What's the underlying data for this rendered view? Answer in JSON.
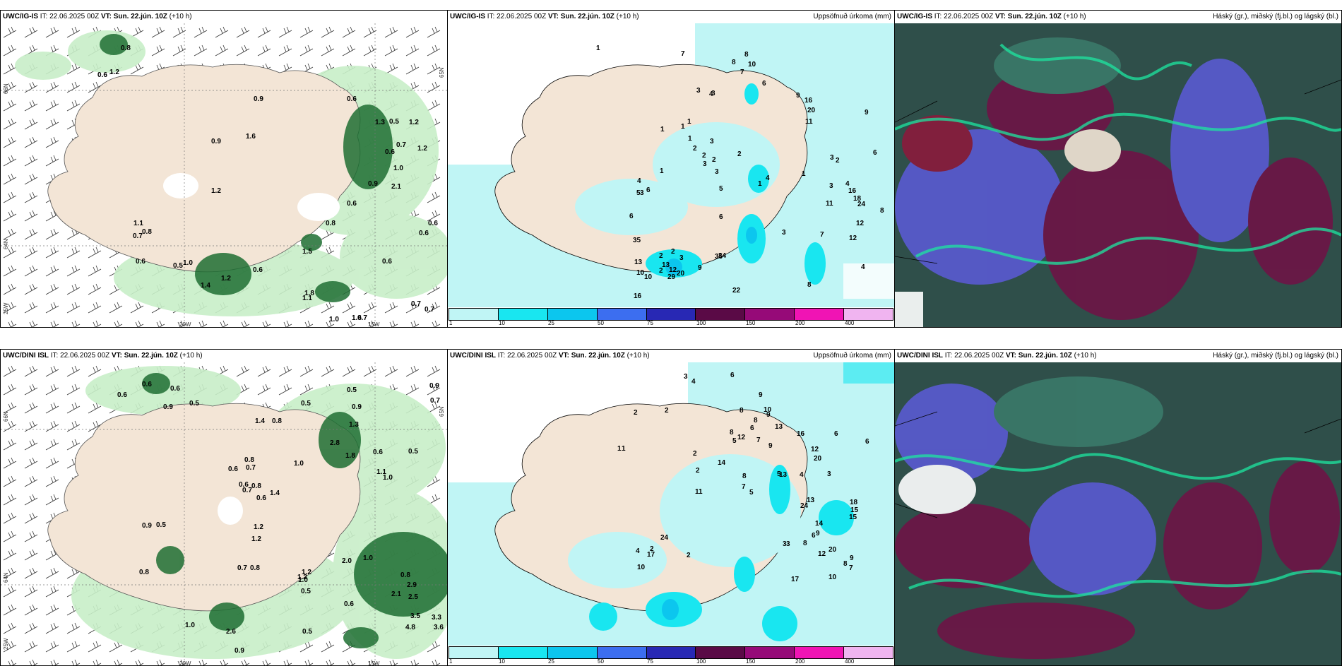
{
  "palette": {
    "land": "#f3e5d6",
    "precip": [
      "#c0f5f5",
      "#19e6f0",
      "#0cc6ee",
      "#3c6ef0",
      "#2828b4",
      "#5a0a46",
      "#960a78",
      "#f014b4",
      "#f0b4f0"
    ]
  },
  "panels": {
    "ig_wind": {
      "model": "UWC/IG-IS",
      "it": "IT: 22.06.2025 00Z",
      "vt_label": "VT:",
      "vt": "Sun. 22.jún. 10Z",
      "offset": "(+10 h)",
      "lat66": "66N",
      "lat64": "64N",
      "lat65": "65N",
      "lon20": "20W",
      "lon25": "25W",
      "lon15": "15W",
      "labels": [
        "0.8",
        "0.6",
        "1.2",
        "0.9",
        "0.6",
        "1.3",
        "0.5",
        "1.2",
        "0.9",
        "1.6",
        "0.7",
        "1.2",
        "0.6",
        "1.0",
        "0.9",
        "2.1",
        "1.2",
        "0.6",
        "0.8",
        "0.6",
        "1.1",
        "0.8",
        "0.7",
        "0.6",
        "0.6",
        "1.0",
        "0.5",
        "1.5",
        "0.6",
        "0.6",
        "1.4",
        "1.2",
        "1.1",
        "1.8",
        "1.6",
        "0.7",
        "0.7",
        "1.0",
        "0.7"
      ]
    },
    "ig_precip": {
      "model": "UWC/IG-IS",
      "it": "IT: 22.06.2025 00Z",
      "vt_label": "VT:",
      "vt": "Sun. 22.jún. 10Z",
      "offset": "(+10 h)",
      "title": "Uppsöfnuð úrkoma (mm)",
      "labels": [
        "1",
        "7",
        "8",
        "8",
        "7",
        "10",
        "6",
        "3",
        "3",
        "4",
        "9",
        "1",
        "1",
        "16",
        "20",
        "9",
        "1",
        "3",
        "1",
        "2",
        "6",
        "11",
        "2",
        "2",
        "3",
        "2",
        "3",
        "5",
        "1",
        "4",
        "3",
        "4",
        "3",
        "2",
        "1",
        "1",
        "4",
        "6",
        "5",
        "3",
        "6",
        "16",
        "18",
        "24",
        "11",
        "8",
        "12",
        "3",
        "7",
        "4",
        "12",
        "2",
        "29",
        "6",
        "2",
        "9",
        "12",
        "13",
        "10",
        "20",
        "35",
        "34",
        "35",
        "22",
        "16",
        "10",
        "13",
        "2",
        "3",
        "8"
      ]
    },
    "ig_cloud": {
      "model": "UWC/IG-IS",
      "it": "IT: 22.06.2025 00Z",
      "vt_label": "VT:",
      "vt": "Sun. 22.jún. 10Z",
      "offset": "(+10 h)",
      "title": "Háský (gr.), miðský (fj.bl.) og lágský (bl.)"
    },
    "dini_wind": {
      "model": "UWC/DINI ISL",
      "it": "IT: 22.06.2025 00Z",
      "vt_label": "VT:",
      "vt": "Sun. 22.jún. 10Z",
      "offset": "(+10 h)",
      "lat66": "66N",
      "lat64": "64N",
      "lat65": "65N",
      "lon20": "20W",
      "lon25": "25W",
      "lon15": "15W",
      "labels": [
        "0.6",
        "0.6",
        "0.6",
        "0.9",
        "0.5",
        "0.5",
        "0.5",
        "0.9",
        "0.9",
        "0.7",
        "1.4",
        "0.8",
        "1.3",
        "2.8",
        "0.6",
        "0.8",
        "1.0",
        "1.8",
        "0.6",
        "0.5",
        "0.7",
        "0.6",
        "0.8",
        "0.7",
        "1.1",
        "1.0",
        "0.6",
        "1.4",
        "0.9",
        "0.5",
        "1.2",
        "1.2",
        "0.8",
        "0.7",
        "0.8",
        "1.2",
        "2.0",
        "1.0",
        "1.0",
        "0.5",
        "0.8",
        "2.9",
        "2.1",
        "2.5",
        "3.5",
        "3.3",
        "4.8",
        "3.6",
        "1.0",
        "2.6",
        "0.5",
        "0.9",
        "1.2",
        "0.6"
      ]
    },
    "dini_precip": {
      "model": "UWC/DINI ISL",
      "it": "IT: 22.06.2025 00Z",
      "vt_label": "VT:",
      "vt": "Sun. 22.jún. 10Z",
      "offset": "(+10 h)",
      "title": "Uppsöfnuð úrkoma (mm)",
      "labels": [
        "3",
        "4",
        "6",
        "9",
        "9",
        "2",
        "2",
        "8",
        "10",
        "8",
        "12",
        "6",
        "8",
        "13",
        "16",
        "6",
        "7",
        "5",
        "20",
        "9",
        "14",
        "6",
        "12",
        "1",
        "1",
        "13",
        "5",
        "2",
        "2",
        "11",
        "8",
        "7",
        "5",
        "4",
        "3",
        "13",
        "24",
        "18",
        "15",
        "15",
        "2",
        "24",
        "17",
        "4",
        "10",
        "14",
        "6",
        "8",
        "12",
        "9",
        "3",
        "3",
        "17",
        "10",
        "20",
        "2",
        "8",
        "9",
        "7"
      ]
    },
    "dini_cloud": {
      "model": "UWC/DINI ISL",
      "it": "IT: 22.06.2025 00Z",
      "vt_label": "VT:",
      "vt": "Sun. 22.jún. 10Z",
      "offset": "(+10 h)",
      "title": "Háský (gr.), miðský (fj.bl.) og lágský (bl.)"
    }
  },
  "legend": {
    "ticks": [
      "1",
      "10",
      "25",
      "50",
      "75",
      "100",
      "150",
      "200",
      "400"
    ]
  }
}
